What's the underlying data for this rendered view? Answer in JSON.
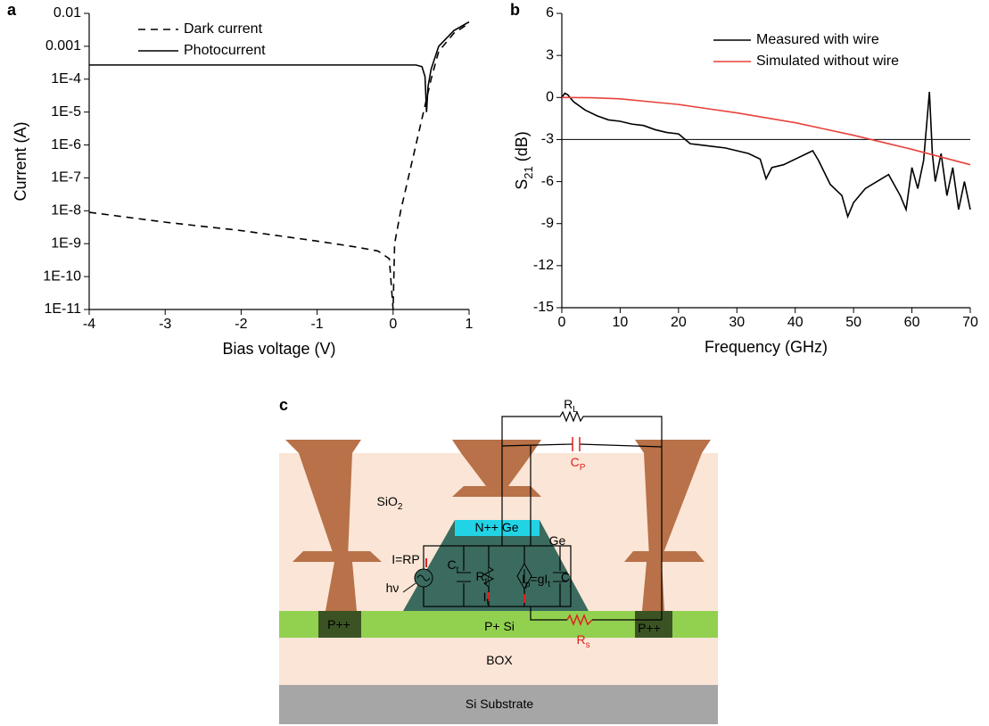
{
  "chart_data": [
    {
      "type": "line",
      "panel": "a",
      "xlabel": "Bias voltage (V)",
      "ylabel": "Current (A)",
      "xlim": [
        -4,
        1
      ],
      "xticks": [
        -4,
        -3,
        -2,
        -1,
        0,
        1
      ],
      "ylim": [
        1e-11,
        0.01
      ],
      "log_y": true,
      "yticks": [
        0.01,
        0.001,
        {
          "value": 0.0001,
          "label": "1E-4"
        },
        {
          "value": 1e-05,
          "label": "1E-5"
        },
        {
          "value": 1e-06,
          "label": "1E-6"
        },
        {
          "value": 1e-07,
          "label": "1E-7"
        },
        {
          "value": 1e-08,
          "label": "1E-8"
        },
        {
          "value": 1e-09,
          "label": "1E-9"
        },
        {
          "value": 1e-10,
          "label": "1E-10"
        },
        {
          "value": 1e-11,
          "label": "1E-11"
        }
      ],
      "series": [
        {
          "name": "Dark current",
          "color": "#000000",
          "dash": true,
          "x": [
            -4,
            -3,
            -2,
            -1,
            -0.5,
            -0.2,
            -0.05,
            0,
            0.02,
            0.1,
            0.2,
            0.3,
            0.4,
            0.5,
            0.6,
            0.8,
            1
          ],
          "values": [
            9e-09,
            4.5e-09,
            2.5e-09,
            1.2e-09,
            8e-10,
            6e-10,
            3.5e-10,
            1e-11,
            1e-09,
            1e-08,
            1e-07,
            1e-06,
            1e-05,
            0.0001,
            0.0007,
            0.0025,
            0.005
          ]
        },
        {
          "name": "Photocurrent",
          "color": "#000000",
          "dash": false,
          "x": [
            -4,
            -3,
            -2,
            -1,
            0,
            0.3,
            0.38,
            0.42,
            0.44,
            0.46,
            0.5,
            0.6,
            0.8,
            1
          ],
          "values": [
            0.00027,
            0.00027,
            0.00027,
            0.00027,
            0.00027,
            0.00027,
            0.00024,
            0.00012,
            1e-05,
            6e-05,
            0.0002,
            0.001,
            0.003,
            0.0055
          ]
        }
      ]
    },
    {
      "type": "line",
      "panel": "b",
      "xlabel": "Frequency (GHz)",
      "ylabel": [
        "S",
        "21",
        " (dB)"
      ],
      "xlim": [
        0,
        70
      ],
      "xticks": [
        0,
        10,
        20,
        30,
        40,
        50,
        60,
        70
      ],
      "ylim": [
        -15,
        6
      ],
      "yticks": [
        -15,
        -12,
        -9,
        -6,
        -3,
        0,
        3,
        6
      ],
      "log_y": false,
      "reference_line": -3,
      "series": [
        {
          "name": "Measured with wire",
          "color": "#000000",
          "dash": false,
          "x": [
            0,
            0.5,
            1,
            2,
            4,
            6,
            8,
            10,
            12,
            14,
            16,
            18,
            20,
            22,
            24,
            26,
            28,
            30,
            32,
            34,
            35,
            36,
            38,
            40,
            42,
            43,
            44,
            46,
            48,
            49,
            50,
            52,
            54,
            56,
            58,
            59,
            60,
            61,
            62,
            63,
            63.5,
            64,
            65,
            66,
            67,
            68,
            69,
            70
          ],
          "values": [
            0,
            0.3,
            0.2,
            -0.3,
            -0.9,
            -1.3,
            -1.6,
            -1.7,
            -1.9,
            -2.0,
            -2.3,
            -2.5,
            -2.6,
            -3.3,
            -3.4,
            -3.5,
            -3.6,
            -3.8,
            -4.0,
            -4.4,
            -5.8,
            -5.0,
            -4.8,
            -4.4,
            -4.0,
            -3.8,
            -4.5,
            -6.2,
            -7.0,
            -8.5,
            -7.5,
            -6.5,
            -6.0,
            -5.5,
            -7.0,
            -8.0,
            -5.0,
            -6.5,
            -4.5,
            0.4,
            -4.0,
            -6.0,
            -4.0,
            -7.0,
            -5.0,
            -8.0,
            -6.0,
            -8.0
          ]
        },
        {
          "name": "Simulated without wire",
          "color": "#e8413b",
          "dash": false,
          "x": [
            0,
            5,
            10,
            15,
            20,
            25,
            30,
            35,
            40,
            45,
            50,
            55,
            60,
            65,
            70
          ],
          "values": [
            0,
            -0.02,
            -0.1,
            -0.3,
            -0.5,
            -0.8,
            -1.1,
            -1.45,
            -1.8,
            -2.25,
            -2.7,
            -3.2,
            -3.7,
            -4.25,
            -4.8
          ]
        }
      ]
    }
  ],
  "diagram": {
    "panel": "c",
    "labels": [
      {
        "parts": [
          "R",
          "L"
        ],
        "color": "#000000"
      },
      {
        "parts": [
          "C",
          "P"
        ],
        "color": "#e02020"
      },
      {
        "parts": [
          "SiO",
          "2"
        ],
        "color": "#000000"
      },
      {
        "parts": [
          "N++ Ge"
        ],
        "color": "#000000"
      },
      {
        "parts": [
          "Ge"
        ],
        "color": "#000000"
      },
      {
        "parts": [
          "I=RP"
        ],
        "color": "#000000"
      },
      {
        "parts": [
          "hν"
        ],
        "color": "#000000"
      },
      {
        "parts": [
          "C",
          "t"
        ],
        "color": "#000000"
      },
      {
        "parts": [
          "R",
          "t"
        ],
        "color": "#000000"
      },
      {
        "parts": [
          "I",
          "t"
        ],
        "color": "#000000"
      },
      {
        "parts": [
          "I",
          "p",
          "=gI",
          "t"
        ],
        "color": "#000000"
      },
      {
        "parts": [
          "C",
          "j"
        ],
        "color": "#000000"
      },
      {
        "parts": [
          "P++"
        ],
        "color": "#000000"
      },
      {
        "parts": [
          "P+ Si"
        ],
        "color": "#000000"
      },
      {
        "parts": [
          "R",
          "s"
        ],
        "color": "#e02020"
      },
      {
        "parts": [
          "P++"
        ],
        "color": "#000000"
      },
      {
        "parts": [
          "BOX"
        ],
        "color": "#000000"
      },
      {
        "parts": [
          "Si Substrate"
        ],
        "color": "#000000"
      }
    ]
  }
}
